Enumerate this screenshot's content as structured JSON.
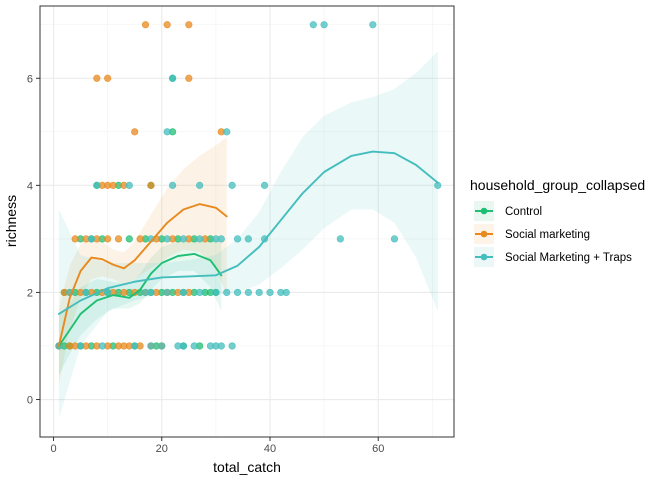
{
  "chart_data": {
    "type": "scatter",
    "xlabel": "total_catch",
    "ylabel": "richness",
    "xlim": [
      -2.5,
      74
    ],
    "ylim": [
      -0.7,
      7.35
    ],
    "x_ticks": [
      0,
      20,
      40,
      60
    ],
    "y_ticks": [
      0,
      2,
      4,
      6
    ],
    "grid": true,
    "legend": {
      "title": "household_group_collapsed",
      "placement": "right"
    },
    "series": [
      {
        "name": "Control",
        "color": "#1fbf73",
        "points": [
          [
            1,
            1
          ],
          [
            2,
            1
          ],
          [
            3,
            1
          ],
          [
            5,
            1
          ],
          [
            7,
            1
          ],
          [
            2,
            2
          ],
          [
            4,
            2
          ],
          [
            6,
            2
          ],
          [
            8,
            2
          ],
          [
            10,
            2
          ],
          [
            12,
            2
          ],
          [
            14,
            2
          ],
          [
            16,
            2
          ],
          [
            18,
            2
          ],
          [
            20,
            2
          ],
          [
            22,
            2
          ],
          [
            24,
            2
          ],
          [
            26,
            2
          ],
          [
            28,
            2
          ],
          [
            29,
            2
          ],
          [
            30,
            2
          ],
          [
            5,
            3
          ],
          [
            9,
            3
          ],
          [
            14,
            3
          ],
          [
            17,
            3
          ],
          [
            20,
            3
          ],
          [
            23,
            3
          ],
          [
            26,
            3
          ],
          [
            29,
            3
          ],
          [
            8,
            4
          ],
          [
            12,
            4
          ],
          [
            18,
            4
          ],
          [
            22,
            5
          ],
          [
            22,
            6
          ],
          [
            7,
            3
          ],
          [
            11,
            1
          ],
          [
            15,
            1
          ],
          [
            19,
            1
          ],
          [
            24,
            1
          ],
          [
            27,
            1
          ]
        ],
        "smooth": [
          [
            1,
            1.0
          ],
          [
            3,
            1.3
          ],
          [
            5,
            1.6
          ],
          [
            8,
            1.85
          ],
          [
            11,
            1.95
          ],
          [
            14,
            1.9
          ],
          [
            16,
            2.05
          ],
          [
            18,
            2.35
          ],
          [
            20,
            2.55
          ],
          [
            23,
            2.68
          ],
          [
            26,
            2.72
          ],
          [
            29,
            2.6
          ],
          [
            31,
            2.32
          ]
        ],
        "band_upper": [
          [
            1,
            1.6
          ],
          [
            3,
            1.8
          ],
          [
            5,
            2.1
          ],
          [
            8,
            2.25
          ],
          [
            11,
            2.2
          ],
          [
            14,
            2.15
          ],
          [
            16,
            2.35
          ],
          [
            18,
            2.65
          ],
          [
            20,
            2.85
          ],
          [
            23,
            2.95
          ],
          [
            26,
            3.0
          ],
          [
            29,
            3.05
          ],
          [
            31,
            2.95
          ]
        ],
        "band_lower": [
          [
            1,
            0.45
          ],
          [
            3,
            0.85
          ],
          [
            5,
            1.2
          ],
          [
            8,
            1.5
          ],
          [
            11,
            1.7
          ],
          [
            14,
            1.7
          ],
          [
            16,
            1.8
          ],
          [
            18,
            2.05
          ],
          [
            20,
            2.25
          ],
          [
            23,
            2.4
          ],
          [
            26,
            2.4
          ],
          [
            29,
            2.1
          ],
          [
            31,
            1.65
          ]
        ]
      },
      {
        "name": "Social marketing",
        "color": "#e8891e",
        "points": [
          [
            1,
            1
          ],
          [
            3,
            1
          ],
          [
            4,
            1
          ],
          [
            6,
            1
          ],
          [
            8,
            1
          ],
          [
            10,
            1
          ],
          [
            12,
            1
          ],
          [
            13,
            1
          ],
          [
            14,
            1
          ],
          [
            16,
            1
          ],
          [
            18,
            1
          ],
          [
            20,
            1
          ],
          [
            2,
            2
          ],
          [
            3,
            2
          ],
          [
            5,
            2
          ],
          [
            7,
            2
          ],
          [
            9,
            2
          ],
          [
            11,
            2
          ],
          [
            13,
            2
          ],
          [
            15,
            2
          ],
          [
            17,
            2
          ],
          [
            19,
            2
          ],
          [
            21,
            2
          ],
          [
            23,
            2
          ],
          [
            25,
            2
          ],
          [
            4,
            3
          ],
          [
            6,
            3
          ],
          [
            8,
            3
          ],
          [
            10,
            3
          ],
          [
            12,
            3
          ],
          [
            16,
            3
          ],
          [
            19,
            3
          ],
          [
            22,
            3
          ],
          [
            25,
            3
          ],
          [
            28,
            3
          ],
          [
            9,
            4
          ],
          [
            10,
            4
          ],
          [
            11,
            4
          ],
          [
            13,
            4
          ],
          [
            18,
            4
          ],
          [
            15,
            5
          ],
          [
            31,
            5
          ],
          [
            8,
            6
          ],
          [
            10,
            6
          ],
          [
            25,
            6
          ],
          [
            17,
            7
          ],
          [
            21,
            7
          ],
          [
            25,
            7
          ]
        ],
        "smooth": [
          [
            1,
            1.0
          ],
          [
            3,
            1.9
          ],
          [
            5,
            2.4
          ],
          [
            7,
            2.65
          ],
          [
            9,
            2.62
          ],
          [
            11,
            2.52
          ],
          [
            13,
            2.45
          ],
          [
            15,
            2.6
          ],
          [
            18,
            2.95
          ],
          [
            21,
            3.3
          ],
          [
            24,
            3.55
          ],
          [
            27,
            3.65
          ],
          [
            30,
            3.58
          ],
          [
            32,
            3.42
          ]
        ],
        "band_upper": [
          [
            1,
            1.7
          ],
          [
            3,
            2.5
          ],
          [
            5,
            2.9
          ],
          [
            7,
            3.05
          ],
          [
            9,
            2.95
          ],
          [
            11,
            2.8
          ],
          [
            13,
            2.75
          ],
          [
            15,
            2.95
          ],
          [
            18,
            3.45
          ],
          [
            21,
            3.95
          ],
          [
            24,
            4.3
          ],
          [
            27,
            4.55
          ],
          [
            30,
            4.75
          ],
          [
            32,
            4.9
          ]
        ],
        "band_lower": [
          [
            1,
            0.3
          ],
          [
            3,
            1.3
          ],
          [
            5,
            1.9
          ],
          [
            7,
            2.25
          ],
          [
            9,
            2.3
          ],
          [
            11,
            2.25
          ],
          [
            13,
            2.15
          ],
          [
            15,
            2.25
          ],
          [
            18,
            2.45
          ],
          [
            21,
            2.65
          ],
          [
            24,
            2.8
          ],
          [
            27,
            2.75
          ],
          [
            30,
            2.45
          ],
          [
            32,
            1.95
          ]
        ]
      },
      {
        "name": "Social Marketing + Traps",
        "color": "#44bdbd",
        "points": [
          [
            1,
            1
          ],
          [
            5,
            1
          ],
          [
            9,
            1
          ],
          [
            15,
            1
          ],
          [
            18,
            1
          ],
          [
            20,
            1
          ],
          [
            23,
            1
          ],
          [
            24,
            1
          ],
          [
            26,
            1
          ],
          [
            29,
            1
          ],
          [
            30,
            1
          ],
          [
            31,
            1
          ],
          [
            33,
            1
          ],
          [
            3,
            2
          ],
          [
            6,
            2
          ],
          [
            10,
            2
          ],
          [
            17,
            2
          ],
          [
            18,
            2
          ],
          [
            21,
            2
          ],
          [
            24,
            2
          ],
          [
            27,
            2
          ],
          [
            30,
            2
          ],
          [
            32,
            2
          ],
          [
            34,
            2
          ],
          [
            36,
            2
          ],
          [
            38,
            2
          ],
          [
            40,
            2
          ],
          [
            42,
            2
          ],
          [
            43,
            2
          ],
          [
            7,
            3
          ],
          [
            18,
            3
          ],
          [
            21,
            3
          ],
          [
            24,
            3
          ],
          [
            27,
            3
          ],
          [
            30,
            3
          ],
          [
            31,
            3
          ],
          [
            34,
            3
          ],
          [
            36,
            3
          ],
          [
            39,
            3
          ],
          [
            53,
            3
          ],
          [
            63,
            3
          ],
          [
            8,
            4
          ],
          [
            14,
            4
          ],
          [
            22,
            4
          ],
          [
            27,
            4
          ],
          [
            33,
            4
          ],
          [
            39,
            4
          ],
          [
            71,
            4
          ],
          [
            21,
            5
          ],
          [
            32,
            5
          ],
          [
            22,
            6
          ],
          [
            48,
            7
          ],
          [
            50,
            7
          ],
          [
            59,
            7
          ]
        ],
        "smooth": [
          [
            1,
            1.6
          ],
          [
            5,
            1.85
          ],
          [
            10,
            2.08
          ],
          [
            15,
            2.2
          ],
          [
            20,
            2.28
          ],
          [
            25,
            2.3
          ],
          [
            30,
            2.32
          ],
          [
            34,
            2.5
          ],
          [
            38,
            2.85
          ],
          [
            42,
            3.35
          ],
          [
            46,
            3.85
          ],
          [
            50,
            4.25
          ],
          [
            55,
            4.55
          ],
          [
            59,
            4.63
          ],
          [
            63,
            4.6
          ],
          [
            67,
            4.38
          ],
          [
            71,
            4.05
          ]
        ],
        "band_upper": [
          [
            1,
            3.55
          ],
          [
            5,
            2.7
          ],
          [
            10,
            2.55
          ],
          [
            15,
            2.55
          ],
          [
            20,
            2.55
          ],
          [
            25,
            2.6
          ],
          [
            30,
            2.7
          ],
          [
            34,
            3.0
          ],
          [
            38,
            3.5
          ],
          [
            42,
            4.25
          ],
          [
            46,
            4.9
          ],
          [
            50,
            5.3
          ],
          [
            55,
            5.55
          ],
          [
            59,
            5.65
          ],
          [
            63,
            5.8
          ],
          [
            67,
            6.1
          ],
          [
            71,
            6.5
          ]
        ],
        "band_lower": [
          [
            1,
            -0.35
          ],
          [
            5,
            1.0
          ],
          [
            10,
            1.65
          ],
          [
            15,
            1.85
          ],
          [
            20,
            1.98
          ],
          [
            25,
            2.0
          ],
          [
            30,
            1.95
          ],
          [
            34,
            2.0
          ],
          [
            38,
            2.15
          ],
          [
            42,
            2.45
          ],
          [
            46,
            2.8
          ],
          [
            50,
            3.2
          ],
          [
            55,
            3.55
          ],
          [
            59,
            3.55
          ],
          [
            63,
            3.3
          ],
          [
            67,
            2.65
          ],
          [
            71,
            1.65
          ]
        ]
      }
    ]
  }
}
